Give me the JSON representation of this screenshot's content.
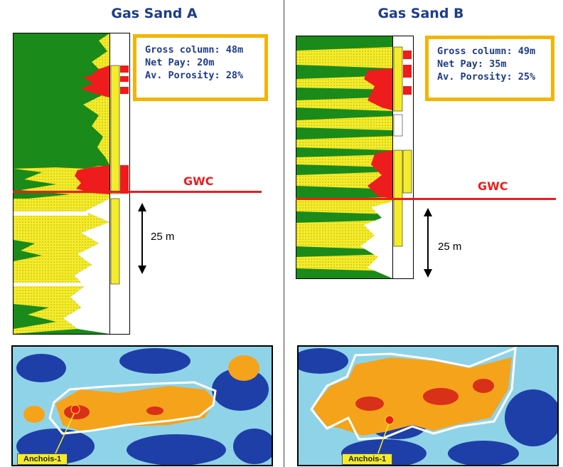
{
  "panels": [
    {
      "title": "Gas Sand A",
      "info": {
        "gross_column": "Gross column: 48m",
        "net_pay": "Net Pay: 20m",
        "porosity": "Av. Porosity: 28%"
      },
      "contact_label": "GWC",
      "scale_label": "25 m",
      "well_label": "Anchois-1"
    },
    {
      "title": "Gas Sand B",
      "info": {
        "gross_column": "Gross column: 49m",
        "net_pay": "Net Pay: 35m",
        "porosity": "Av. Porosity: 25%"
      },
      "contact_label": "GWC",
      "scale_label": "25 m",
      "well_label": "Anchois-1"
    }
  ],
  "colors": {
    "title": "#1f3c88",
    "shale": "#1a8a1a",
    "sand": "#f4ec2a",
    "gas": "#ee1c1c",
    "contact": "#ee1c1c",
    "box_border": "#f5b400",
    "map_high": "#f5a31a",
    "map_low": "#1e3fa8"
  }
}
